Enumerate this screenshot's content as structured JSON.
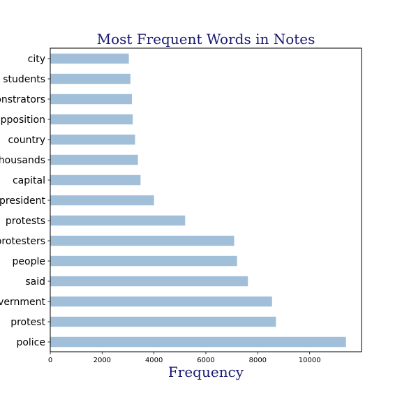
{
  "chart_data": {
    "type": "bar",
    "orientation": "horizontal",
    "title": "Most Frequent Words in Notes",
    "xlabel": "Frequency",
    "ylabel": "",
    "categories": [
      "police",
      "protest",
      "government",
      "said",
      "people",
      "protesters",
      "protests",
      "president",
      "capital",
      "thousands",
      "country",
      "opposition",
      "demonstrators",
      "students",
      "city"
    ],
    "values": [
      11400,
      8700,
      8550,
      7620,
      7200,
      7090,
      5200,
      4000,
      3480,
      3380,
      3270,
      3180,
      3150,
      3090,
      3030
    ],
    "xlim": [
      0,
      12000
    ],
    "xticks": [
      0,
      2000,
      4000,
      6000,
      8000,
      10000
    ],
    "grid": false,
    "legend": "none",
    "bar_color": "#a2bfd9"
  }
}
